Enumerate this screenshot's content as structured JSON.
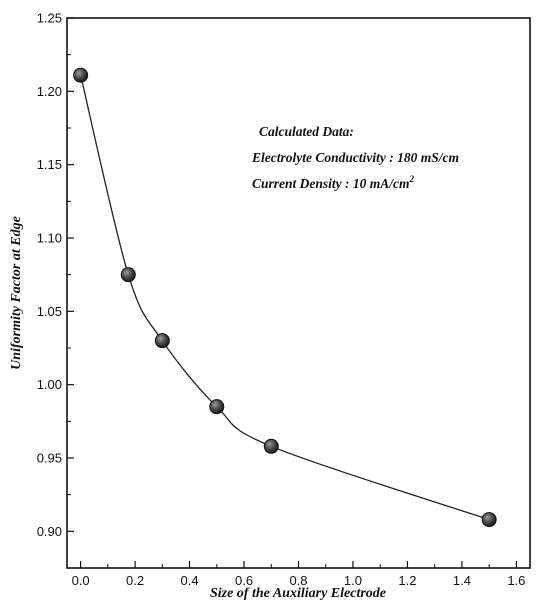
{
  "chart_data": {
    "type": "line",
    "x": [
      0.0,
      0.175,
      0.3,
      0.5,
      0.7,
      1.5
    ],
    "y": [
      1.211,
      1.075,
      1.03,
      0.985,
      0.958,
      0.908
    ],
    "xlabel": "Size of the Auxiliary Electrode",
    "ylabel": "Uniformity Factor at Edge",
    "xlim": [
      -0.05,
      1.65
    ],
    "ylim": [
      0.875,
      1.25
    ],
    "xticks": [
      "0.0",
      "0.2",
      "0.4",
      "0.6",
      "0.8",
      "1.0",
      "1.2",
      "1.4",
      "1.6"
    ],
    "yticks": [
      "0.90",
      "0.95",
      "1.00",
      "1.05",
      "1.10",
      "1.15",
      "1.20",
      "1.25"
    ],
    "grid": false,
    "marker": "filled-circle",
    "line_color": "#222222",
    "marker_color": "#555555",
    "annotations": [
      "Calculated Data:",
      "Electrolyte Conductivity : 180 mS/cm",
      "Current Density : 10 mA/cm"
    ],
    "annotation_superscript": "2"
  }
}
